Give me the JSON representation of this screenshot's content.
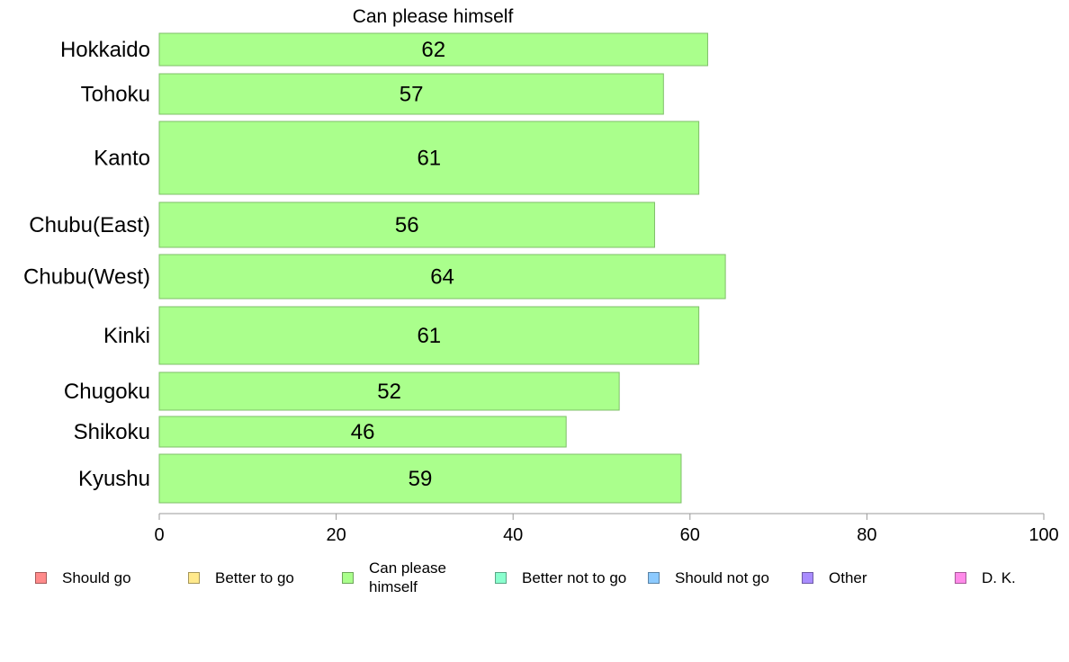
{
  "chart_data": {
    "type": "bar",
    "orientation": "horizontal",
    "title": "Can please himself",
    "categories": [
      "Hokkaido",
      "Tohoku",
      "Kanto",
      "Chubu(East)",
      "Chubu(West)",
      "Kinki",
      "Chugoku",
      "Shikoku",
      "Kyushu"
    ],
    "values": [
      62,
      57,
      61,
      56,
      64,
      61,
      52,
      46,
      59
    ],
    "bar_color": "#aaff8c",
    "bar_stroke": "#7fbf69",
    "xlim": [
      0,
      100
    ],
    "xticks": [
      0,
      20,
      40,
      60,
      80,
      100
    ],
    "xlabel": "",
    "ylabel": "",
    "grid": false,
    "legend_placement": "bottom"
  },
  "legend": {
    "items": [
      {
        "label": "Should go",
        "color": "#ff8a8a"
      },
      {
        "label": "Better to go",
        "color": "#ffe98c"
      },
      {
        "label": "Can please himself",
        "color": "#aaff8c"
      },
      {
        "label": "Better not to go",
        "color": "#8affce"
      },
      {
        "label": "Should not go",
        "color": "#8ccaff"
      },
      {
        "label": "Other",
        "color": "#a98cff"
      },
      {
        "label": "D. K.",
        "color": "#ff8ae9"
      }
    ]
  }
}
